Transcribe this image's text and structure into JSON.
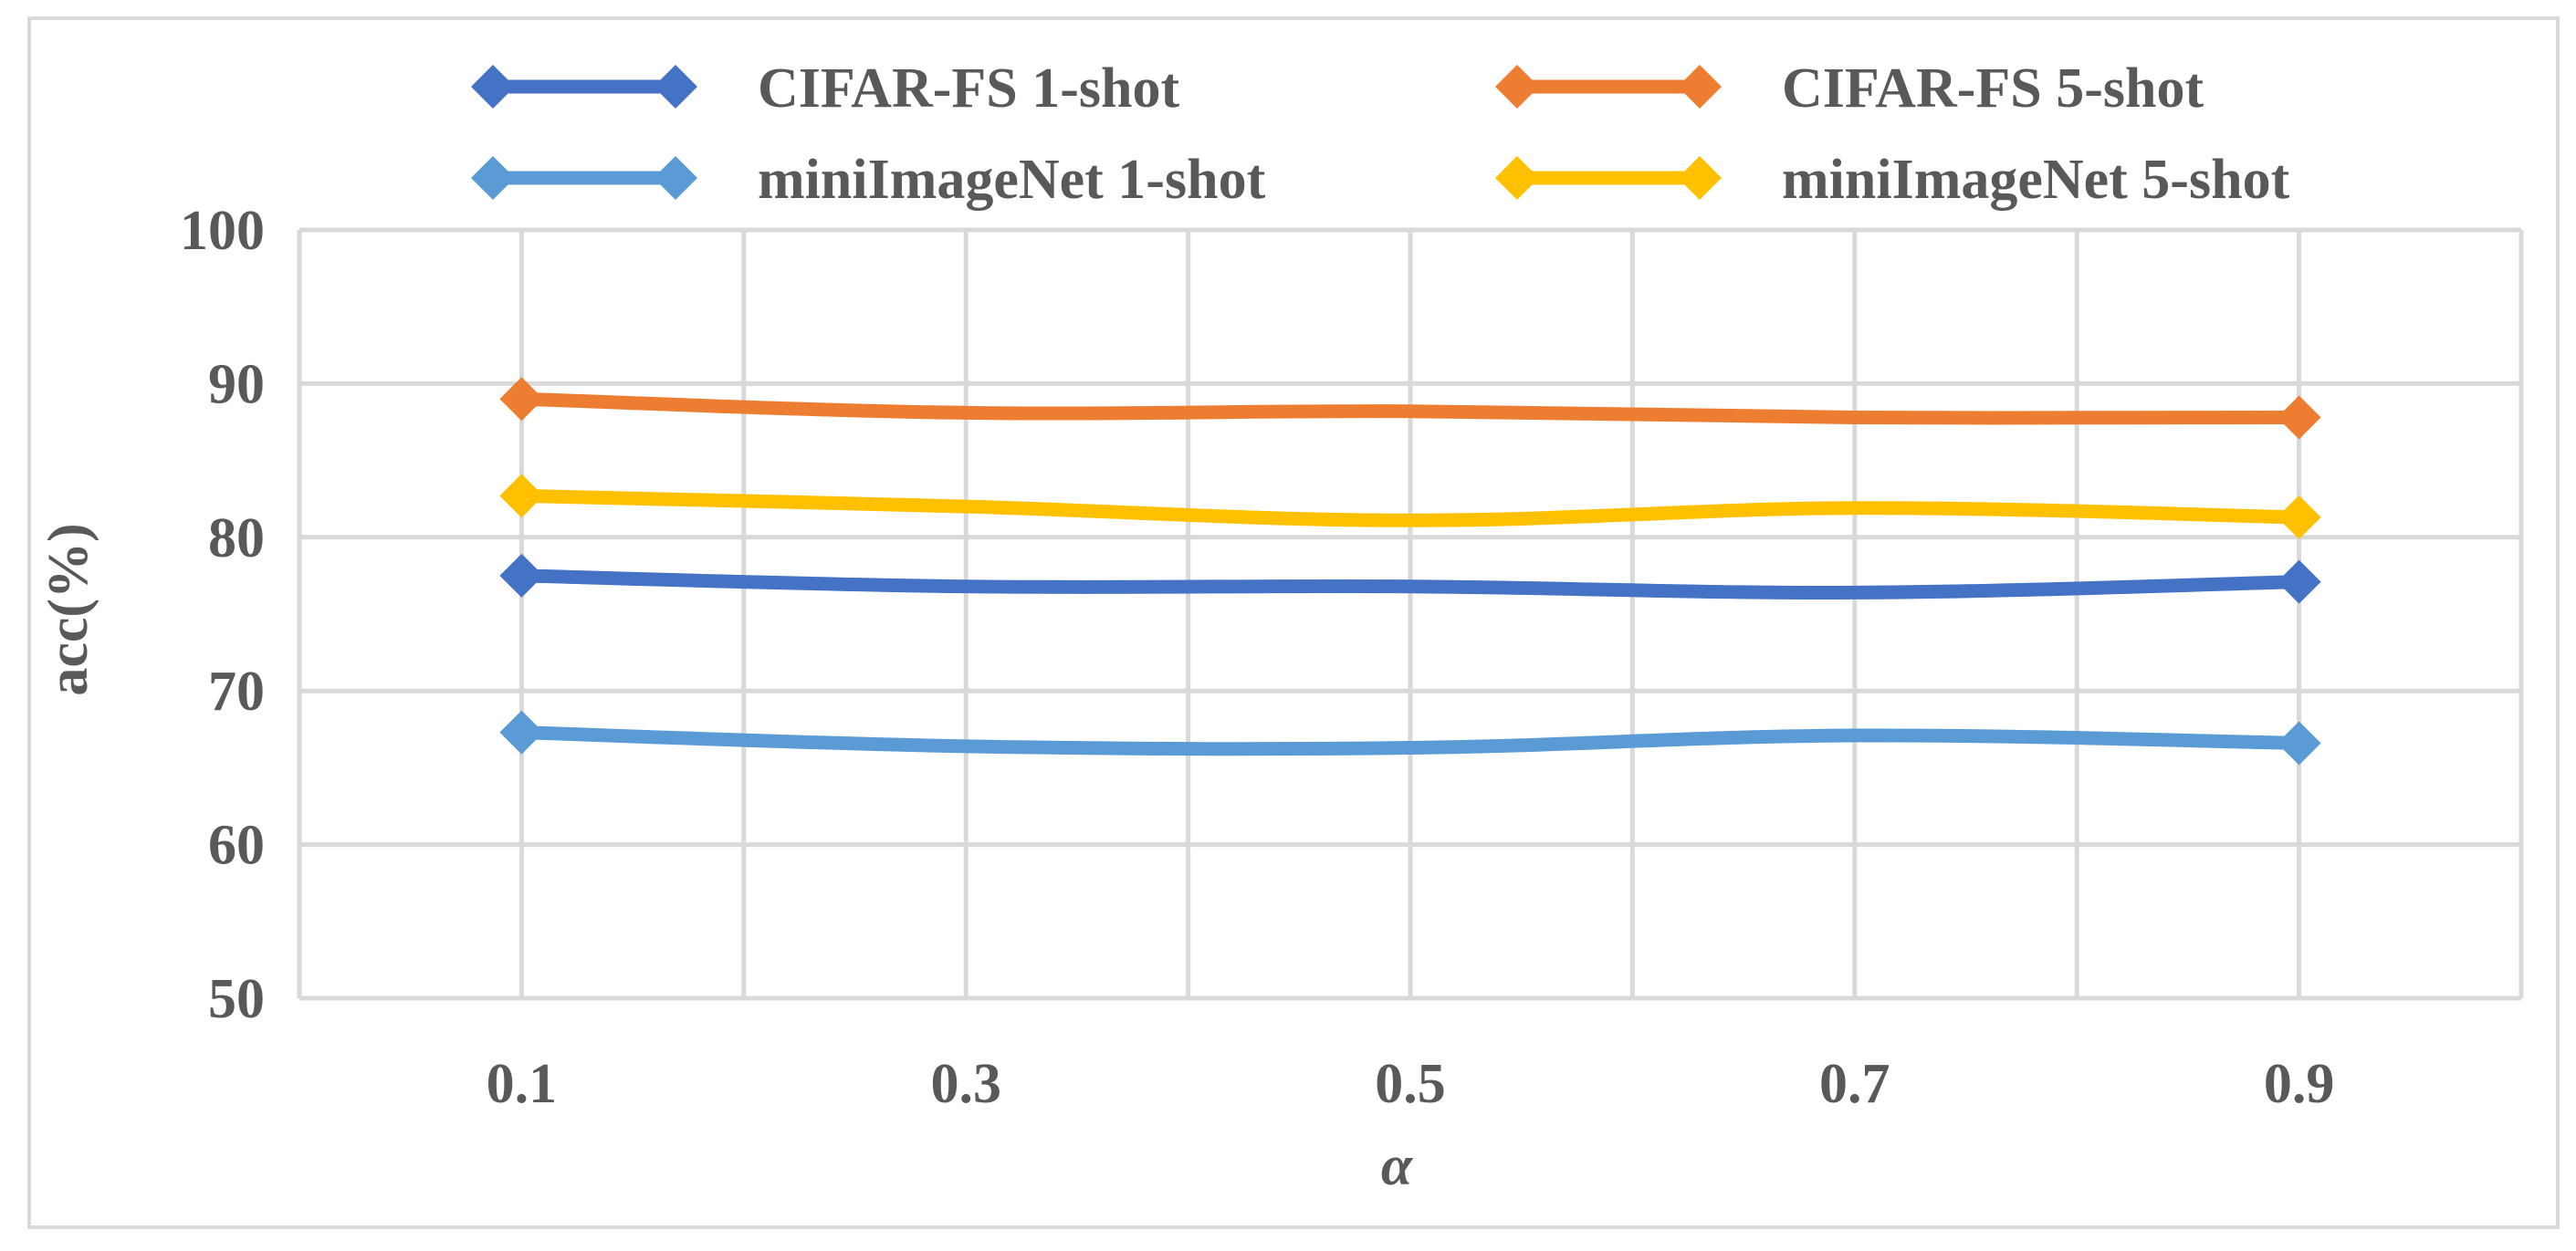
{
  "chart_data": {
    "type": "line",
    "title": "",
    "xlabel": "α",
    "ylabel": "acc(%)",
    "categories": [
      "0.1",
      "0.3",
      "0.5",
      "0.7",
      "0.9"
    ],
    "ylim": [
      50,
      100
    ],
    "yticks": [
      50,
      60,
      70,
      80,
      90,
      100
    ],
    "grid": true,
    "legend_position": "top",
    "series": [
      {
        "name": "CIFAR-FS 1-shot",
        "color": "#4472C4",
        "values": [
          77.5,
          76.8,
          76.8,
          76.4,
          77.1
        ]
      },
      {
        "name": "CIFAR-FS 5-shot",
        "color": "#ED7D31",
        "values": [
          89.0,
          88.1,
          88.2,
          87.8,
          87.8
        ]
      },
      {
        "name": "miniImageNet 1-shot",
        "color": "#5B9BD5",
        "values": [
          67.3,
          66.4,
          66.3,
          67.1,
          66.6
        ]
      },
      {
        "name": "miniImageNet 5-shot",
        "color": "#FFC000",
        "values": [
          82.7,
          82.0,
          81.1,
          81.9,
          81.3
        ]
      }
    ],
    "marker": "diamond-icon"
  }
}
